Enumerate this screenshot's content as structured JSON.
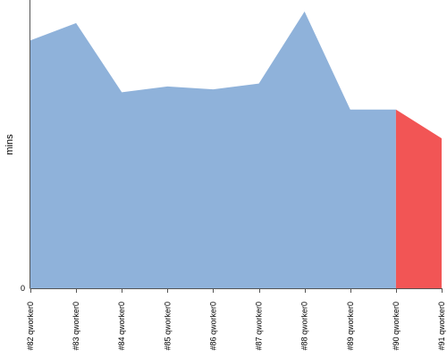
{
  "chart_data": {
    "type": "area",
    "ylabel": "mins",
    "y_tick_labels": [
      "0"
    ],
    "ylim": [
      0,
      100
    ],
    "grid": false,
    "categories": [
      "#82 qworker0",
      "#83 qworker0",
      "#84 qworker0",
      "#85 qworker0",
      "#86 qworker0",
      "#87 qworker0",
      "#88 qworker0",
      "#89 qworker0",
      "#90 qworker0",
      "#91 qworker0"
    ],
    "values": [
      86,
      92,
      68,
      70,
      69,
      71,
      96,
      62,
      62,
      52
    ],
    "segments": [
      {
        "from": 0,
        "to": 8,
        "color": "#8fb2da",
        "status": "success"
      },
      {
        "from": 8,
        "to": 9,
        "color": "#f25555",
        "status": "failure"
      }
    ]
  }
}
